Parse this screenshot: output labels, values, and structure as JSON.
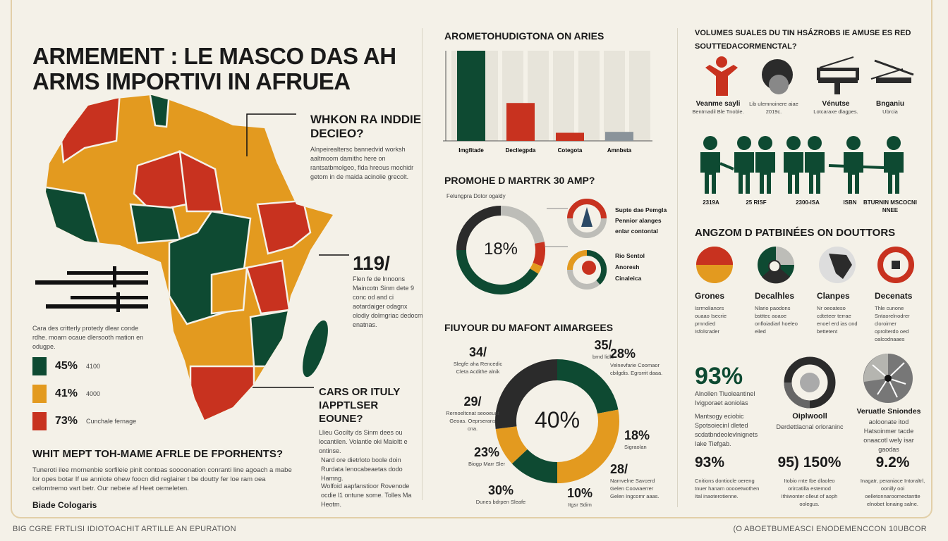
{
  "colors": {
    "green": "#0e4a32",
    "orange": "#e39a1f",
    "red": "#c8321f",
    "dark": "#2b2b2b",
    "gray": "#bdbdb8",
    "bg": "#f4f1e8"
  },
  "title": "ARMEMENT : LE MASCO DAS AH ARMS IMPORTIVI IN AFRUEA",
  "map": {
    "callout1": {
      "title": "WHKON RA INDDIE DECIEO?",
      "text": "Alnpeirealtersc bannedvid worksh aaltmoom damithc here on rantsatbmolgeo, flda hreous mochidr getom in de maida acinolie grecolt."
    },
    "callout2": {
      "value": "119/",
      "text": "Flen fe de lnnoons Maincotn Sinm dete 9 conc od and ci aotardaiger odagnx olodiy dolmgriac dedocm enatnas."
    },
    "callout3": {
      "title": "CARS OR ITULY IAPPTLSER EOUNE?",
      "text": "Llieu Gocilty ds Sinm dees ou locantilen. Volantle oki Maioltt e ontinse."
    },
    "legend_text": "Cara des critterly protedy dlear conde rdhe. moarn ocaue dlersooth mation en odugpe.",
    "legend": [
      {
        "value": "45%",
        "label": "4100",
        "color": "#0e4a32"
      },
      {
        "value": "41%",
        "label": "4000",
        "color": "#e39a1f"
      },
      {
        "value": "73%",
        "label": "Cunchale fernage",
        "color": "#c8321f"
      }
    ]
  },
  "bottom_left": {
    "title": "WHIT MEPT TOH-MAME AFRLE DE FPORHENTS?",
    "text": "Tuneroti ilee rnornenbie sorfileie pinit contoas soooonation conranti line agoach a mabe lor opes botar If ue anniote ohew foocn did reglairer t be doutty fer loe ram oea celomtremo vart betr. Our nebeie af Heet oemeleten.",
    "byline": "Biade Cologaris",
    "side1": "Nard ore dietrloto boole doin Rurdata lenocabeaetas dodo Hamng.",
    "side2": "Wolfoid aapfanstioor Rovenode ocdie l1 ontune some. Tolles Ma Heotm."
  },
  "bar_chart": {
    "title": "AROMETOHUDIGTONA ON ARIES",
    "chart_data": {
      "type": "bar",
      "categories": [
        "Imgfitade",
        "Decliegpda",
        "Cotegota",
        "Amnbsta"
      ],
      "values": [
        100,
        42,
        9,
        10
      ],
      "colors": [
        "#0e4a32",
        "#c8321f",
        "#c8321f",
        "#8a939a"
      ],
      "ylim": [
        0,
        100
      ],
      "grid": true
    }
  },
  "donut1": {
    "title": "PROMOHE D MARTRK 30 AMP?",
    "subtitle": "Felungpra Dotor ogaldy",
    "center": "18%",
    "chart_data": {
      "type": "pie",
      "values": [
        22,
        9,
        3,
        41,
        25
      ],
      "colors": [
        "#bdbdb8",
        "#c8321f",
        "#e39a1f",
        "#0e4a32",
        "#2b2b2b"
      ]
    },
    "side": [
      {
        "lines": [
          "Supte dae Pemgla",
          "Pennior alanges",
          "enlar contontal"
        ]
      },
      {
        "lines": [
          "Rio Sentol",
          "Anoresh",
          "Cinaleica"
        ]
      }
    ]
  },
  "donut2": {
    "title": "FIUYOUR DU MAFONT AIMARGEES",
    "center": "40%",
    "chart_data": {
      "type": "pie",
      "values": [
        22,
        28,
        13,
        10,
        27
      ],
      "colors": [
        "#0e4a32",
        "#e39a1f",
        "#0e4a32",
        "#e39a1f",
        "#2b2b2b"
      ]
    },
    "labels": [
      {
        "value": "34/",
        "text": "Slegfe aha Rencedic Cleta Acdithe alnik"
      },
      {
        "value": "35/",
        "text": "brnd lidls"
      },
      {
        "value": "28%",
        "text": "Velnevfarie Coomaor cbilgdis. Egrsrrit daaa."
      },
      {
        "value": "29/",
        "text": "Rernoeltcnat seooeuat Geoas. Oeprserans cna."
      },
      {
        "value": "18%",
        "text": "Sigraolan"
      },
      {
        "value": "23%",
        "text": "Biogp Marr Sler"
      },
      {
        "value": "28/",
        "text": "Namvelne Savcerd Gelen Coowaerrer Gelen Ingcomr aaas."
      },
      {
        "value": "30%",
        "text": "Dunes bdrpen Sleafe"
      },
      {
        "value": "10%",
        "text": "Itgsr Sdim"
      }
    ]
  },
  "right": {
    "title": "VOLUMES SUALES DU TIN HSÁZROBS IE AMUSE ES RED SOUTTEDACORMENCTAL?",
    "icons": [
      {
        "icon": "person-icon",
        "label": "Veanme sayli",
        "sub": "Bentmadil Ble Tnoble."
      },
      {
        "icon": "helmet-icon",
        "label": "",
        "sub": "Lib ulemnoinere aiae 2019c."
      },
      {
        "icon": "artillery-icon",
        "label": "Vénutse",
        "sub": "Lotcaraxe dlagpes."
      },
      {
        "icon": "tank-icon",
        "label": "Bnganiu",
        "sub": "Ubrcia"
      }
    ],
    "figures": [
      "2319A",
      "25 RISF",
      "2300-ISA",
      "ISBN",
      "BTURNIN MSCOCNI NNEE"
    ],
    "section2": "ANGZOM D PATBINÉES ON DOUTTORS",
    "cats": [
      {
        "label": "Grones",
        "text": "Isrrnolianors ouaao Isecrie prnndied Isfolsrader"
      },
      {
        "label": "Decalhles",
        "text": "Nlario paodons bstttec aoaoe onfloiadiarl hoeleo eiled"
      },
      {
        "label": "Clanpes",
        "text": "Nr oeoateso cdteteer terrae enoel erd ias ond bettetent"
      },
      {
        "label": "Decenats",
        "text": "Thle cunone Sntaorelnodrer cloroimer oprolterdo oed oalcodnaaes"
      }
    ],
    "stat_big": {
      "value": "93%",
      "title": "Alnollen Tluoleantinel Ivigporaet aoniolas",
      "text": "Mantsogy eciobic Spotsoiecinl dleted scdatbndeolevlnignets Iake Tiefgab."
    },
    "ring": {
      "label": "Oiplwooll",
      "text": "Derdettlacnal orloraninc"
    },
    "pie": {
      "label": "Veruatle Sniondes",
      "text": "aoloonate itod Hatsoinmer tacde onaacotl wely isar gaodas"
    },
    "stats": [
      {
        "value": "93%",
        "text": "Cnitions dontiocle oereng tnuer hanam ooooetwothen Ital inaoterotienne."
      },
      {
        "value": "95) 150%",
        "text": "Itobio rnte Ibe dlaoleo orircatilla estemod Ithiwonter olleut of aoph oolegus."
      },
      {
        "value": "9.2%",
        "text": "Inagatr, peraniace Intoraltrl, oonilly ooi oelletonnaroomectantte elnobet lonaing salne."
      }
    ]
  },
  "footer": {
    "left": "BIG CGRE FRTLISI IDIOTOACHIT ARTILLE AN EPURATION",
    "right": "(O ABOETBUMEASCI ENODEMENCCON 10UBCOR"
  }
}
